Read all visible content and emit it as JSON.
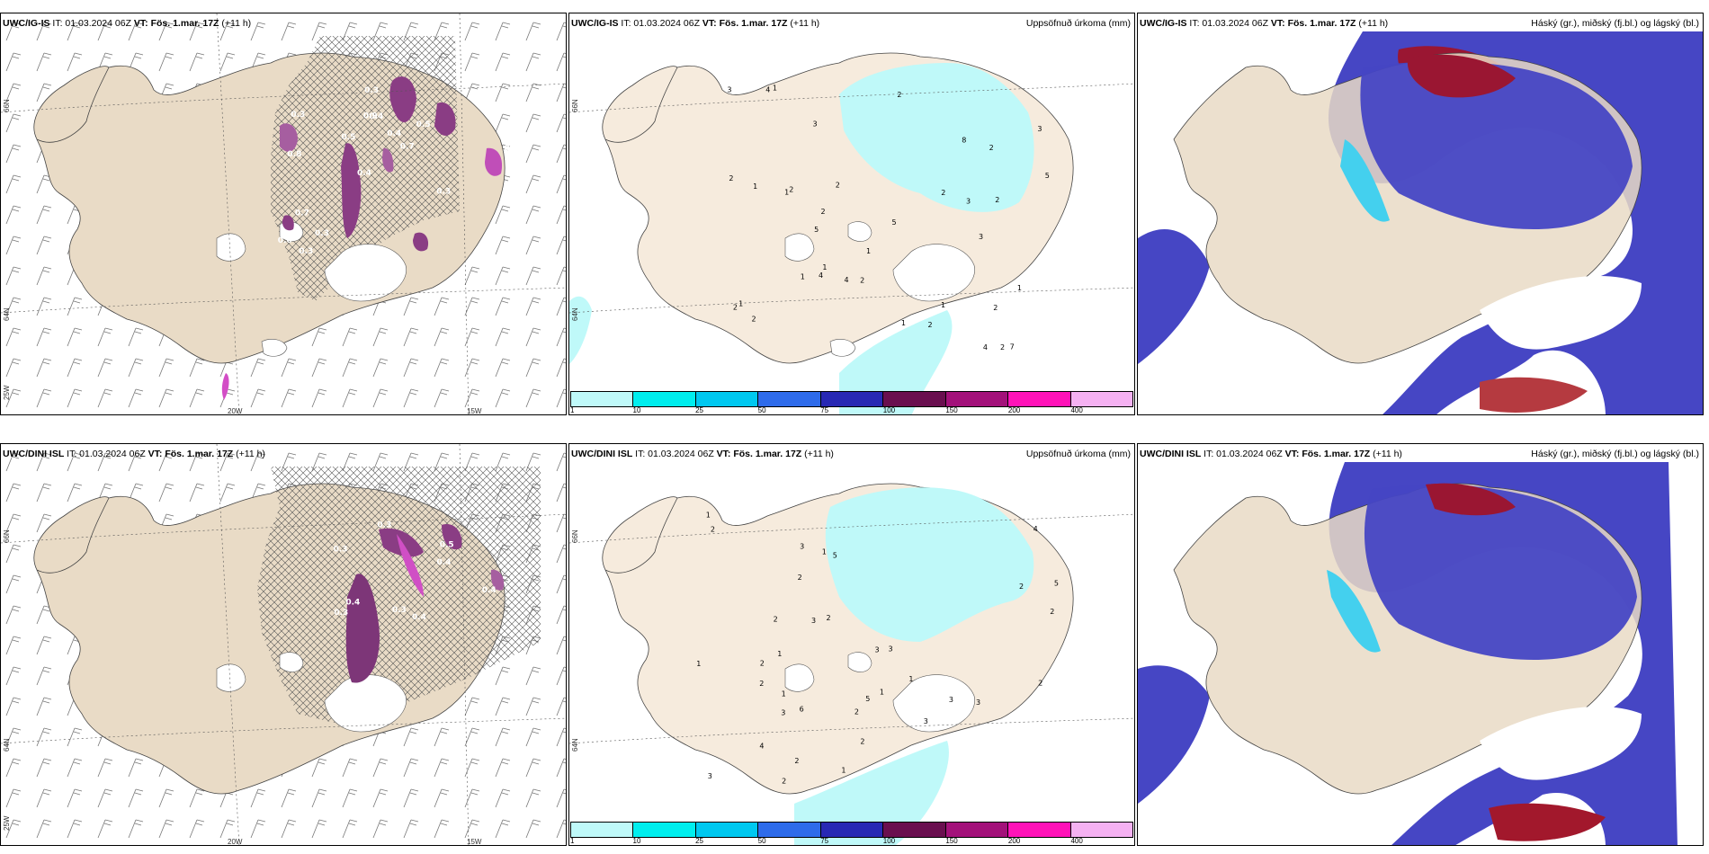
{
  "panels": [
    {
      "id": "ig-top-left",
      "model": "UWC/IG-IS",
      "it": "IT: 01.03.2024 06Z",
      "vt_label": "VT:",
      "vt_value": "Fös. 1.mar. 17Z",
      "lead": "(+11 h)",
      "right_title": "",
      "axis": {
        "lat1": "66N",
        "lat2": "64N",
        "lon_left": "25W",
        "lon1": "20W",
        "lon2": "15W"
      },
      "labels": [
        "0.4",
        "0.8",
        "0.5",
        "0.4",
        "0.5",
        "0.3",
        "0.9",
        "0.4",
        "0.7",
        "0.5",
        "0.6",
        "0.3",
        "0.4",
        "0.7",
        "0.3",
        "0.3",
        "0.3",
        "0.3"
      ]
    },
    {
      "id": "ig-top-middle",
      "model": "UWC/IG-IS",
      "it": "IT: 01.03.2024 06Z",
      "vt_label": "VT:",
      "vt_value": "Fös. 1.mar. 17Z",
      "lead": "(+11 h)",
      "right_title": "Uppsöfnuð úrkoma (mm)",
      "axis": {
        "lat1": "66N",
        "lat2": "64N"
      },
      "labels": [
        "1",
        "1",
        "4",
        "3",
        "7",
        "3",
        "2",
        "5",
        "4",
        "3",
        "2",
        "2",
        "3",
        "4",
        "2",
        "1",
        "5",
        "5",
        "3",
        "2",
        "2",
        "2",
        "2",
        "1",
        "2",
        "2",
        "1",
        "1",
        "2",
        "2",
        "1",
        "4",
        "2",
        "1",
        "8",
        "2",
        "1",
        "1"
      ]
    },
    {
      "id": "ig-top-right",
      "model": "UWC/IG-IS",
      "it": "IT: 01.03.2024 06Z",
      "vt_label": "VT:",
      "vt_value": "Fös. 1.mar. 17Z",
      "lead": "(+11 h)",
      "right_title": "Háský (gr.), miðský (fj.bl.) og lágský (bl.)"
    },
    {
      "id": "dini-bottom-left",
      "model": "UWC/DINI ISL",
      "it": "IT: 01.03.2024 06Z",
      "vt_label": "VT:",
      "vt_value": "Fös. 1.mar. 17Z",
      "lead": "(+11 h)",
      "right_title": "",
      "axis": {
        "lat1": "66N",
        "lat2": "64N",
        "lon_left": "25W",
        "lon1": "20W",
        "lon2": "15W"
      },
      "labels": [
        "0.3",
        "0.5",
        "0.4",
        "0.3",
        "0.4",
        "0.4",
        "0.3",
        "0.4",
        "0.3"
      ]
    },
    {
      "id": "dini-bottom-middle",
      "model": "UWC/DINI ISL",
      "it": "IT: 01.03.2024 06Z",
      "vt_label": "VT:",
      "vt_value": "Fös. 1.mar. 17Z",
      "lead": "(+11 h)",
      "right_title": "Uppsöfnuð úrkoma (mm)",
      "axis": {
        "lat1": "66N",
        "lat2": "64N"
      },
      "labels": [
        "2",
        "1",
        "1",
        "4",
        "5",
        "3",
        "5",
        "6",
        "3",
        "3",
        "3",
        "3",
        "2",
        "2",
        "5",
        "3",
        "2",
        "4",
        "2",
        "2",
        "2",
        "2",
        "2",
        "1",
        "2",
        "1",
        "1",
        "3",
        "1",
        "1",
        "1",
        "3",
        "2",
        "2",
        "3",
        "2"
      ]
    },
    {
      "id": "dini-bottom-right",
      "model": "UWC/DINI ISL",
      "it": "IT: 01.03.2024 06Z",
      "vt_label": "VT:",
      "vt_value": "Fös. 1.mar. 17Z",
      "lead": "(+11 h)",
      "right_title": "Háský (gr.), miðský (fj.bl.) og lágský (bl.)"
    }
  ],
  "precip_colorbar": {
    "ticks": [
      "1",
      "10",
      "25",
      "50",
      "75",
      "100",
      "150",
      "200",
      "400"
    ],
    "colors": [
      "#bff9f9",
      "#00eeee",
      "#00c8f0",
      "#2e6bea",
      "#2828b4",
      "#6a0f4f",
      "#a3117a",
      "#ff12b8",
      "#f5b1f2"
    ]
  },
  "colors": {
    "land": "#f3e6d7",
    "land_precip": "#f4ead9",
    "purple": "#9b4b95",
    "magenta": "#e053d4",
    "cloud_blue": "#3f43c8",
    "cloud_mid": "#4a80e6",
    "cloud_light": "#36d1ef",
    "cloud_dark_red": "#9b1536",
    "cyan_precip": "#bff9f9"
  }
}
